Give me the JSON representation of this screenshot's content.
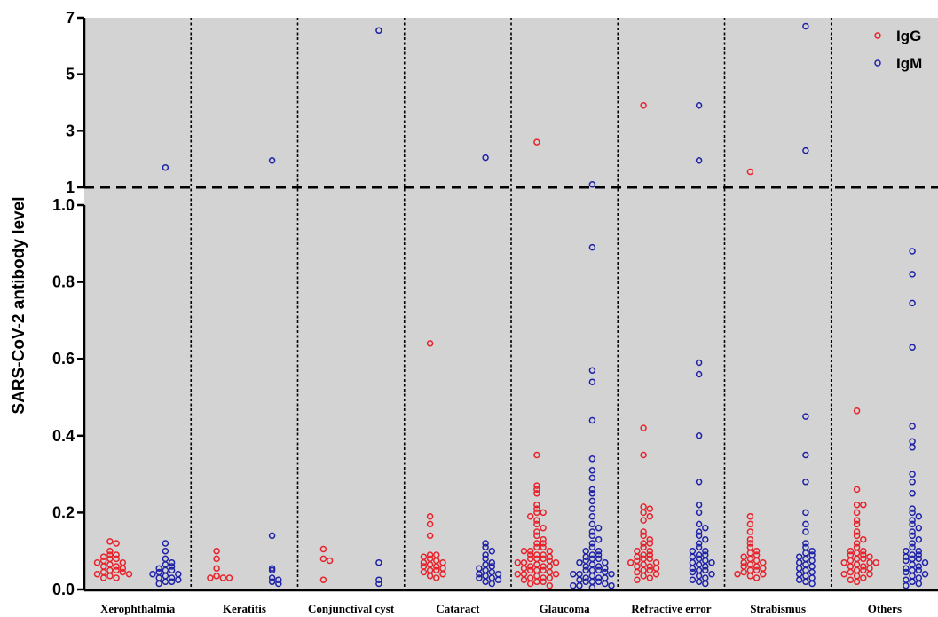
{
  "chart_data": {
    "type": "scatter",
    "subtype": "beeswarm with broken y-axis",
    "ylabel": "SARS-CoV-2 antibody level",
    "xlabel": "",
    "y_axis": {
      "lower_segment": {
        "range": [
          0,
          1.0
        ],
        "ticks": [
          "0.0",
          "0.2",
          "0.4",
          "0.6",
          "0.8",
          "1.0"
        ]
      },
      "upper_segment": {
        "range": [
          1,
          7
        ],
        "ticks": [
          "1",
          "3",
          "5",
          "7"
        ]
      },
      "break_at": 1
    },
    "background": "#d3d3d3",
    "grid": false,
    "legend": {
      "placement": "top-right",
      "entries": [
        {
          "name": "IgG",
          "color": "#e8212a"
        },
        {
          "name": "IgM",
          "color": "#1e22a8"
        }
      ]
    },
    "categories": [
      "Xerophthalmia",
      "Keratitis",
      "Conjunctival cyst",
      "Cataract",
      "Glaucoma",
      "Refractive error",
      "Strabismus",
      "Others"
    ],
    "series": [
      {
        "name": "IgG",
        "color": "#e8212a",
        "values": [
          [
            0.125,
            0.12,
            0.1,
            0.09,
            0.09,
            0.085,
            0.08,
            0.08,
            0.075,
            0.07,
            0.07,
            0.065,
            0.06,
            0.06,
            0.055,
            0.05,
            0.05,
            0.045,
            0.045,
            0.04,
            0.04,
            0.035,
            0.03,
            0.03
          ],
          [
            0.1,
            0.08,
            0.055,
            0.035,
            0.03,
            0.03,
            0.03
          ],
          [
            0.105,
            0.08,
            0.075,
            0.025
          ],
          [
            0.64,
            0.19,
            0.17,
            0.14,
            0.09,
            0.09,
            0.085,
            0.08,
            0.075,
            0.07,
            0.07,
            0.065,
            0.06,
            0.06,
            0.055,
            0.05,
            0.05,
            0.045,
            0.04,
            0.035,
            0.03
          ],
          [
            2.6,
            0.35,
            0.27,
            0.26,
            0.25,
            0.22,
            0.21,
            0.2,
            0.2,
            0.19,
            0.18,
            0.17,
            0.16,
            0.15,
            0.14,
            0.13,
            0.12,
            0.12,
            0.11,
            0.11,
            0.1,
            0.1,
            0.1,
            0.09,
            0.09,
            0.09,
            0.085,
            0.08,
            0.08,
            0.08,
            0.075,
            0.07,
            0.07,
            0.07,
            0.065,
            0.06,
            0.06,
            0.06,
            0.055,
            0.05,
            0.05,
            0.05,
            0.045,
            0.04,
            0.04,
            0.04,
            0.035,
            0.03,
            0.03,
            0.03,
            0.025,
            0.02,
            0.02,
            0.015,
            0.01
          ],
          [
            3.9,
            0.42,
            0.35,
            0.215,
            0.21,
            0.2,
            0.19,
            0.18,
            0.15,
            0.14,
            0.13,
            0.12,
            0.12,
            0.11,
            0.1,
            0.1,
            0.09,
            0.09,
            0.085,
            0.08,
            0.08,
            0.075,
            0.07,
            0.07,
            0.065,
            0.06,
            0.06,
            0.055,
            0.05,
            0.05,
            0.045,
            0.04,
            0.035,
            0.03,
            0.025
          ],
          [
            1.55,
            0.19,
            0.17,
            0.15,
            0.13,
            0.12,
            0.11,
            0.1,
            0.095,
            0.09,
            0.085,
            0.08,
            0.075,
            0.07,
            0.07,
            0.065,
            0.06,
            0.06,
            0.055,
            0.05,
            0.05,
            0.045,
            0.04,
            0.04,
            0.035,
            0.03
          ],
          [
            0.465,
            0.26,
            0.22,
            0.22,
            0.2,
            0.18,
            0.17,
            0.15,
            0.14,
            0.13,
            0.12,
            0.11,
            0.1,
            0.1,
            0.095,
            0.09,
            0.09,
            0.085,
            0.08,
            0.08,
            0.075,
            0.07,
            0.07,
            0.07,
            0.065,
            0.06,
            0.06,
            0.055,
            0.05,
            0.05,
            0.045,
            0.04,
            0.04,
            0.035,
            0.03,
            0.025,
            0.02
          ]
        ]
      },
      {
        "name": "IgM",
        "color": "#1e22a8",
        "values": [
          [
            1.7,
            0.12,
            0.1,
            0.08,
            0.07,
            0.065,
            0.06,
            0.055,
            0.05,
            0.05,
            0.045,
            0.04,
            0.04,
            0.035,
            0.03,
            0.03,
            0.025,
            0.02,
            0.02,
            0.015
          ],
          [
            1.95,
            0.14,
            0.055,
            0.05,
            0.03,
            0.025,
            0.02,
            0.015
          ],
          [
            6.55,
            0.07,
            0.025,
            0.015
          ],
          [
            2.05,
            0.12,
            0.11,
            0.1,
            0.09,
            0.08,
            0.07,
            0.065,
            0.06,
            0.055,
            0.05,
            0.045,
            0.04,
            0.04,
            0.035,
            0.03,
            0.03,
            0.025,
            0.02,
            0.015
          ],
          [
            1.1,
            0.89,
            0.57,
            0.54,
            0.44,
            0.34,
            0.31,
            0.29,
            0.26,
            0.25,
            0.23,
            0.21,
            0.19,
            0.17,
            0.16,
            0.15,
            0.14,
            0.13,
            0.12,
            0.11,
            0.1,
            0.1,
            0.09,
            0.09,
            0.085,
            0.08,
            0.08,
            0.075,
            0.07,
            0.07,
            0.065,
            0.06,
            0.06,
            0.055,
            0.05,
            0.05,
            0.05,
            0.045,
            0.04,
            0.04,
            0.04,
            0.035,
            0.03,
            0.03,
            0.03,
            0.025,
            0.02,
            0.02,
            0.02,
            0.015,
            0.01,
            0.01,
            0.01,
            0.005
          ],
          [
            3.9,
            1.95,
            0.59,
            0.56,
            0.4,
            0.28,
            0.22,
            0.2,
            0.17,
            0.16,
            0.15,
            0.14,
            0.13,
            0.12,
            0.11,
            0.1,
            0.1,
            0.09,
            0.09,
            0.085,
            0.08,
            0.075,
            0.07,
            0.07,
            0.065,
            0.06,
            0.055,
            0.05,
            0.05,
            0.045,
            0.04,
            0.035,
            0.03,
            0.025,
            0.02,
            0.015
          ],
          [
            6.7,
            2.3,
            0.45,
            0.35,
            0.28,
            0.2,
            0.17,
            0.15,
            0.12,
            0.11,
            0.1,
            0.095,
            0.09,
            0.085,
            0.08,
            0.075,
            0.07,
            0.065,
            0.06,
            0.055,
            0.05,
            0.045,
            0.04,
            0.035,
            0.03,
            0.025,
            0.02,
            0.015
          ],
          [
            0.88,
            0.82,
            0.745,
            0.63,
            0.425,
            0.385,
            0.37,
            0.3,
            0.28,
            0.25,
            0.21,
            0.2,
            0.19,
            0.18,
            0.17,
            0.16,
            0.15,
            0.14,
            0.13,
            0.12,
            0.11,
            0.1,
            0.1,
            0.09,
            0.09,
            0.085,
            0.08,
            0.08,
            0.075,
            0.07,
            0.065,
            0.06,
            0.055,
            0.05,
            0.05,
            0.045,
            0.04,
            0.035,
            0.03,
            0.025,
            0.02,
            0.015,
            0.01
          ]
        ]
      }
    ]
  }
}
